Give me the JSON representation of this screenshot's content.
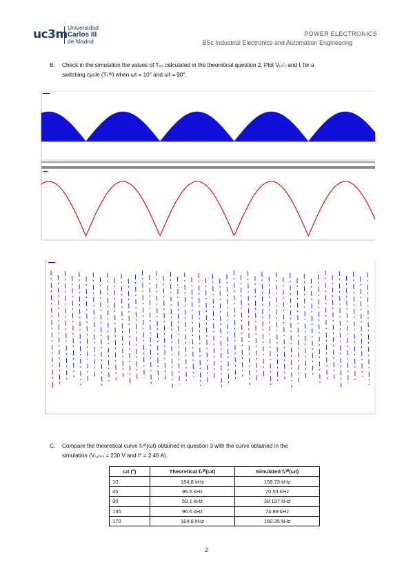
{
  "header": {
    "logo_mark": "uc3m",
    "logo_line1": "Universidad",
    "logo_line2": "Carlos III",
    "logo_line3": "de Madrid",
    "title": "POWER ELECTRONICS",
    "subtitle": "BSc Industrial Electronics and Automation Engineering"
  },
  "section_b": {
    "label": "B.",
    "line1": "Check in the simulation the values of Tₒₙ calculated in the theoretical question 2. Plot Vᵣₑᶜₜ and Iₗ for a",
    "line2": "switching cycle (Tₛᵂ) when ωt = 10° and ωt = 90°."
  },
  "section_c": {
    "label": "C.",
    "line1": "Compare the theoretical curve fₛᵂ(ωt) obtained in question 3 with the curve obtained in the",
    "line2": "simulation (Vₗ,ᵣₘₛ = 230 V and I* = 2.46 A)."
  },
  "colors": {
    "blue": "#1010d8",
    "red": "#e00000",
    "navy": "#1f3d6b"
  },
  "table": {
    "headers": [
      "ωt (º)",
      "Theoretical fₛᵂ(ωt)",
      "Simulated fₛᵂ(ωt)"
    ],
    "rows": [
      [
        "10",
        "164.8 kHz",
        "158.73 kHz"
      ],
      [
        "45",
        "96.6 kHz",
        "70.53 kHz"
      ],
      [
        "90",
        "59.1 kHz",
        "38.197 kHz"
      ],
      [
        "135",
        "96.6 kHz",
        "74.89 kHz"
      ],
      [
        "170",
        "164.8 kHz",
        "160.35 kHz"
      ]
    ]
  },
  "page_number": "2"
}
